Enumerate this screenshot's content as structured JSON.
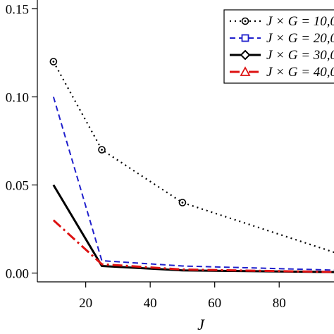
{
  "chart_data": {
    "type": "line",
    "xlabel": "J",
    "ylabel": "",
    "xlim": [
      5,
      97
    ],
    "ylim": [
      -0.005,
      0.155
    ],
    "x_ticks": [
      20,
      40,
      60,
      80
    ],
    "y_ticks": [
      0.0,
      0.05,
      0.1,
      0.15
    ],
    "x_tick_labels": [
      "20",
      "40",
      "60",
      "80"
    ],
    "y_tick_labels": [
      "0.00",
      "0.05",
      "0.10",
      "0.15"
    ],
    "grid": false,
    "legend_position": "top-right",
    "series": [
      {
        "name": "J × G = 10,0",
        "color": "#000000",
        "line_style": "dotted",
        "marker": "circle-dot",
        "x": [
          10,
          25,
          50,
          100
        ],
        "y": [
          0.12,
          0.07,
          0.04,
          0.01
        ]
      },
      {
        "name": "J × G = 20,0",
        "color": "#1f1fcc",
        "line_style": "dashed",
        "marker": "square",
        "x": [
          10,
          25,
          50,
          100
        ],
        "y": [
          0.1,
          0.007,
          0.004,
          0.0015
        ]
      },
      {
        "name": "J × G = 30,0",
        "color": "#000000",
        "line_style": "solid",
        "marker": "diamond",
        "x": [
          10,
          25,
          50,
          100
        ],
        "y": [
          0.05,
          0.004,
          0.0015,
          0.0005
        ]
      },
      {
        "name": "J × G = 40,0",
        "color": "#dd1111",
        "line_style": "dashdot",
        "marker": "triangle",
        "x": [
          10,
          25,
          50,
          100
        ],
        "y": [
          0.03,
          0.005,
          0.002,
          0.0005
        ]
      }
    ]
  }
}
